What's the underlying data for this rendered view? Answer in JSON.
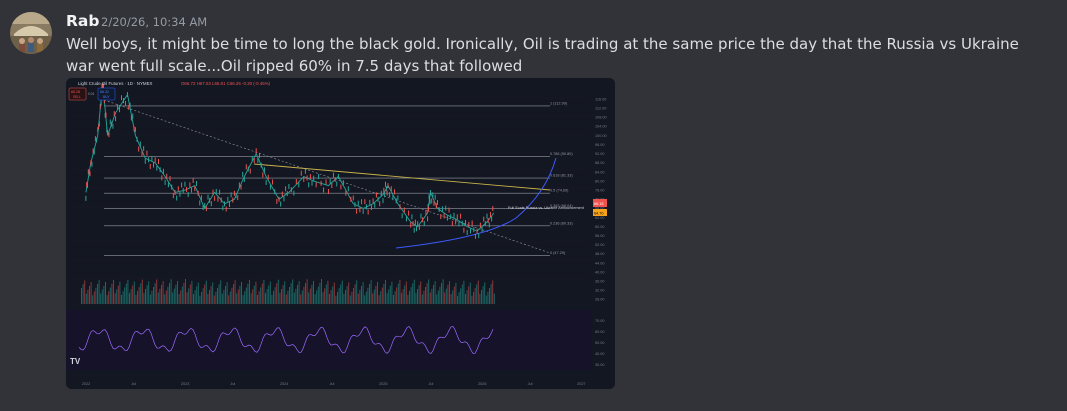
{
  "message": {
    "username": "Rab",
    "timestamp": "2/20/26, 10:34 AM",
    "text": "Well boys, it might be time to long the black gold. Ironically, Oil is trading at the same price the day that the Russia vs Ukraine war went full scale...Oil ripped 60% in 7.5 days that followed"
  },
  "chart_header": {
    "instrument": "Light Crude Oil Futures · 1D · NYMEX",
    "ohlc": "O66.72 H67.03 L65.81 C66.25 -0.30 (-0.45%)",
    "sell_price": "66.28",
    "sell_label": "SELL",
    "buy_price": "66.32",
    "buy_label": "BUY",
    "spread": "0.04"
  },
  "chart_data": {
    "type": "line",
    "y_ticks": [
      "116.00",
      "112.00",
      "108.00",
      "104.00",
      "100.00",
      "96.00",
      "92.00",
      "88.00",
      "84.00",
      "80.00",
      "76.00",
      "72.00",
      "68.00",
      "64.00",
      "60.00",
      "56.00",
      "52.00",
      "48.00",
      "44.00",
      "40.00",
      "36.00",
      "32.00",
      "28.00"
    ],
    "x_ticks": [
      "2022",
      "Jul",
      "2023",
      "Jul",
      "2024",
      "Jul",
      "2025",
      "Jul",
      "2026",
      "Jul",
      "2027"
    ],
    "fib_levels": [
      {
        "label": "1 (112.99)",
        "value": 112.99
      },
      {
        "label": "0.786 (90.80)",
        "value": 90.8
      },
      {
        "label": "0.618 (81.33)",
        "value": 81.33
      },
      {
        "label": "0.5 (74.69)",
        "value": 74.69
      },
      {
        "label": "0.382 (68.04)",
        "value": 68.04
      },
      {
        "label": "0.236 (60.33)",
        "value": 60.33
      },
      {
        "label": "0 (47.29)",
        "value": 47.29
      }
    ],
    "annotation": "Full Scale Russia vs. Ukraine Announcement",
    "price_labels": [
      "66.15",
      "64.70"
    ],
    "price_series": [
      {
        "t": 2022.0,
        "p": 75
      },
      {
        "t": 2022.05,
        "p": 88
      },
      {
        "t": 2022.12,
        "p": 100
      },
      {
        "t": 2022.17,
        "p": 123
      },
      {
        "t": 2022.22,
        "p": 100
      },
      {
        "t": 2022.3,
        "p": 110
      },
      {
        "t": 2022.42,
        "p": 118
      },
      {
        "t": 2022.5,
        "p": 100
      },
      {
        "t": 2022.6,
        "p": 90
      },
      {
        "t": 2022.7,
        "p": 88
      },
      {
        "t": 2022.8,
        "p": 82
      },
      {
        "t": 2022.9,
        "p": 75
      },
      {
        "t": 2023.0,
        "p": 76
      },
      {
        "t": 2023.1,
        "p": 78
      },
      {
        "t": 2023.2,
        "p": 68
      },
      {
        "t": 2023.3,
        "p": 75
      },
      {
        "t": 2023.4,
        "p": 70
      },
      {
        "t": 2023.5,
        "p": 72
      },
      {
        "t": 2023.6,
        "p": 82
      },
      {
        "t": 2023.72,
        "p": 92
      },
      {
        "t": 2023.82,
        "p": 82
      },
      {
        "t": 2023.95,
        "p": 72
      },
      {
        "t": 2024.05,
        "p": 75
      },
      {
        "t": 2024.2,
        "p": 82
      },
      {
        "t": 2024.3,
        "p": 80
      },
      {
        "t": 2024.45,
        "p": 78
      },
      {
        "t": 2024.55,
        "p": 82
      },
      {
        "t": 2024.7,
        "p": 70
      },
      {
        "t": 2024.8,
        "p": 68
      },
      {
        "t": 2024.9,
        "p": 70
      },
      {
        "t": 2025.0,
        "p": 74
      },
      {
        "t": 2025.05,
        "p": 78
      },
      {
        "t": 2025.15,
        "p": 70
      },
      {
        "t": 2025.28,
        "p": 62
      },
      {
        "t": 2025.35,
        "p": 60
      },
      {
        "t": 2025.45,
        "p": 66
      },
      {
        "t": 2025.48,
        "p": 75
      },
      {
        "t": 2025.55,
        "p": 68
      },
      {
        "t": 2025.65,
        "p": 65
      },
      {
        "t": 2025.75,
        "p": 63
      },
      {
        "t": 2025.85,
        "p": 60
      },
      {
        "t": 2025.95,
        "p": 58
      },
      {
        "t": 2026.05,
        "p": 62
      },
      {
        "t": 2026.12,
        "p": 66
      }
    ],
    "rsi_ticks": [
      "70.00",
      "60.00",
      "50.00",
      "40.00",
      "30.00"
    ]
  },
  "colors": {
    "background": "#313338",
    "chart_bg": "#0e0f12",
    "up": "#26a69a",
    "down": "#ef5350",
    "fib": "#9598a1",
    "trend_yellow": "#c9b24a",
    "curve_blue": "#3d5afe",
    "rsi": "#9c6bff"
  }
}
